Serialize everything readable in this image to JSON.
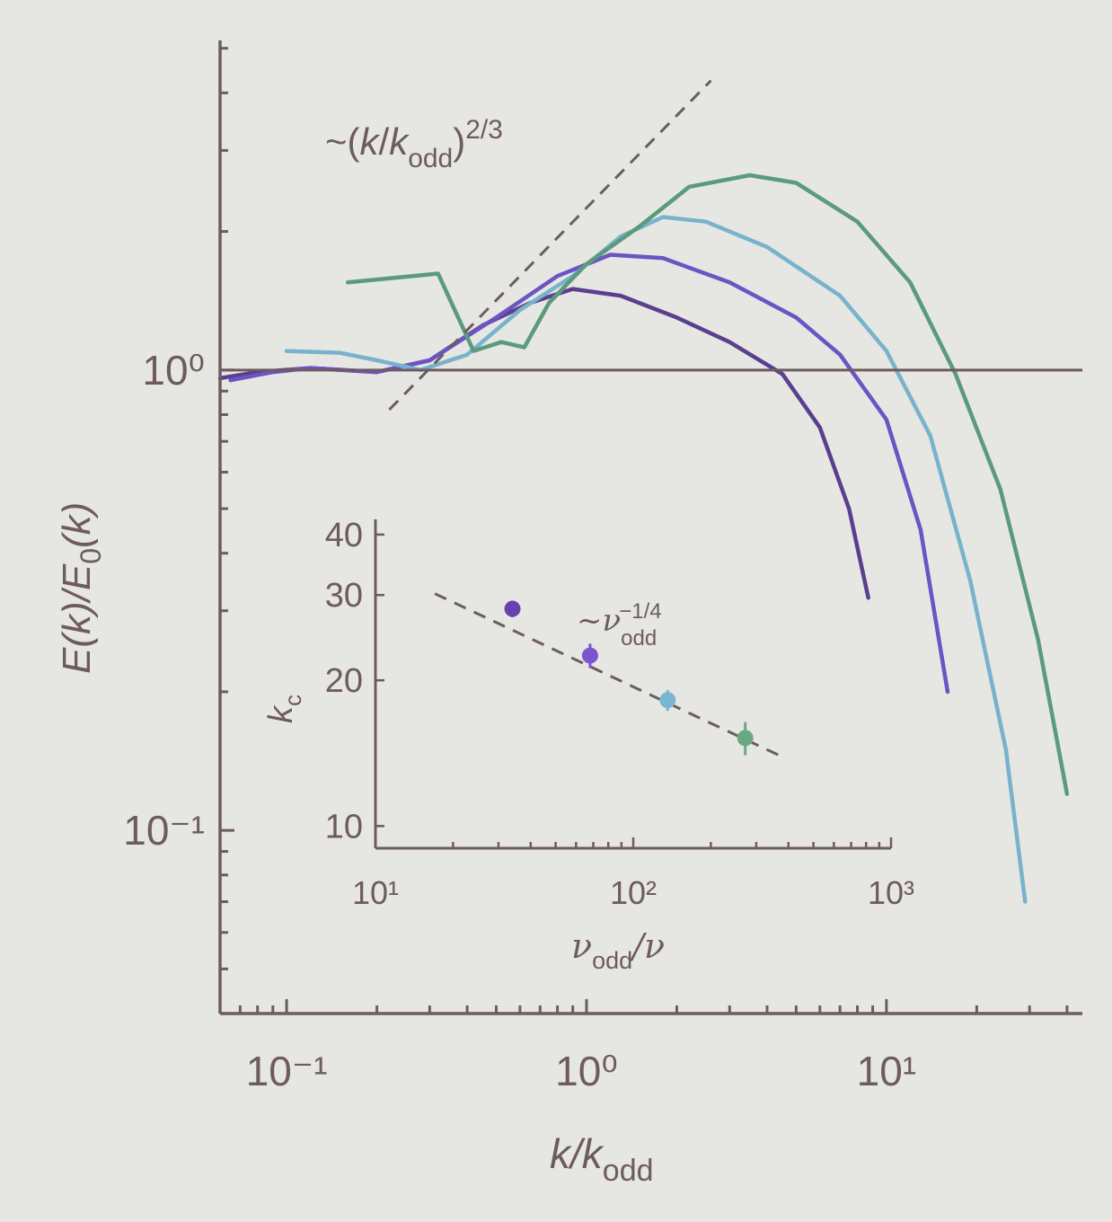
{
  "chart_data": [
    {
      "type": "line",
      "xscale": "log",
      "yscale": "log",
      "xlim": [
        0.06,
        45
      ],
      "ylim": [
        0.04,
        5.2
      ],
      "xlabel": "k/k_odd",
      "ylabel": "E(k)/E_0(k)",
      "xticks": [
        {
          "value": 0.1,
          "label": "10⁻¹"
        },
        {
          "value": 1,
          "label": "10⁰"
        },
        {
          "value": 10,
          "label": "10¹"
        }
      ],
      "yticks": [
        {
          "value": 0.1,
          "label": "10⁻¹"
        },
        {
          "value": 1,
          "label": "10⁰"
        }
      ],
      "reference_line": {
        "y": 1
      },
      "annotation": {
        "text": "~(k/k_odd)^2/3",
        "exponent": 0.6667,
        "x_range": [
          0.22,
          2.6
        ],
        "y_at_x0": 0.82
      },
      "grid": false,
      "series": [
        {
          "color": "#5b3f8f",
          "points": [
            [
              0.06,
              0.96
            ],
            [
              0.08,
              0.99
            ],
            [
              0.12,
              1.01
            ],
            [
              0.2,
              0.99
            ],
            [
              0.3,
              1.05
            ],
            [
              0.45,
              1.25
            ],
            [
              0.65,
              1.4
            ],
            [
              0.9,
              1.5
            ],
            [
              1.3,
              1.45
            ],
            [
              2,
              1.3
            ],
            [
              3,
              1.15
            ],
            [
              4.5,
              0.98
            ],
            [
              6,
              0.75
            ],
            [
              7.5,
              0.5
            ],
            [
              8.7,
              0.32
            ]
          ]
        },
        {
          "color": "#6b54c3",
          "points": [
            [
              0.065,
              0.95
            ],
            [
              0.09,
              0.99
            ],
            [
              0.12,
              1.01
            ],
            [
              0.2,
              0.99
            ],
            [
              0.3,
              1.05
            ],
            [
              0.5,
              1.3
            ],
            [
              0.8,
              1.6
            ],
            [
              1.2,
              1.78
            ],
            [
              1.8,
              1.75
            ],
            [
              3,
              1.55
            ],
            [
              5,
              1.3
            ],
            [
              7,
              1.08
            ],
            [
              10,
              0.78
            ],
            [
              13,
              0.45
            ],
            [
              16,
              0.2
            ]
          ]
        },
        {
          "color": "#78b2cc",
          "points": [
            [
              0.1,
              1.1
            ],
            [
              0.15,
              1.09
            ],
            [
              0.2,
              1.05
            ],
            [
              0.28,
              1.0
            ],
            [
              0.4,
              1.08
            ],
            [
              0.6,
              1.35
            ],
            [
              0.9,
              1.6
            ],
            [
              1.3,
              1.95
            ],
            [
              1.8,
              2.15
            ],
            [
              2.5,
              2.1
            ],
            [
              4,
              1.85
            ],
            [
              7,
              1.45
            ],
            [
              10,
              1.1
            ],
            [
              14,
              0.72
            ],
            [
              19,
              0.35
            ],
            [
              25,
              0.15
            ],
            [
              29,
              0.07
            ]
          ]
        },
        {
          "color": "#5c9a7c",
          "points": [
            [
              0.16,
              1.55
            ],
            [
              0.32,
              1.62
            ],
            [
              0.42,
              1.1
            ],
            [
              0.52,
              1.15
            ],
            [
              0.62,
              1.12
            ],
            [
              0.75,
              1.4
            ],
            [
              1.0,
              1.7
            ],
            [
              1.5,
              2.05
            ],
            [
              2.2,
              2.5
            ],
            [
              3.5,
              2.65
            ],
            [
              5,
              2.55
            ],
            [
              8,
              2.1
            ],
            [
              12,
              1.55
            ],
            [
              17,
              0.98
            ],
            [
              24,
              0.55
            ],
            [
              32,
              0.26
            ],
            [
              40,
              0.12
            ]
          ]
        }
      ]
    },
    {
      "type": "scatter",
      "inset": true,
      "xscale": "log",
      "yscale": "log",
      "xlim": [
        10,
        1000
      ],
      "ylim": [
        9,
        43
      ],
      "xlabel": "ν_odd/ν",
      "ylabel": "k_c",
      "xticks": [
        {
          "value": 10,
          "label": "10¹"
        },
        {
          "value": 100,
          "label": "10²"
        },
        {
          "value": 1000,
          "label": "10³"
        }
      ],
      "yticks": [
        {
          "value": 10,
          "label": "10"
        },
        {
          "value": 20,
          "label": "20"
        },
        {
          "value": 30,
          "label": "30"
        },
        {
          "value": 40,
          "label": "40"
        }
      ],
      "fit": {
        "text": "~ν_odd^-1/4",
        "exponent": -0.25,
        "x_range": [
          17,
          380
        ],
        "y_at_x0": 30.2
      },
      "points": [
        {
          "x": 34,
          "y": 28.1,
          "err": 1.1,
          "color": "#6a3fb2"
        },
        {
          "x": 68,
          "y": 22.5,
          "err": 1.3,
          "color": "#7a55d0"
        },
        {
          "x": 136,
          "y": 18.2,
          "err": 0.9,
          "color": "#78b6d3"
        },
        {
          "x": 272,
          "y": 15.2,
          "err": 1.2,
          "color": "#6aa884"
        }
      ]
    }
  ]
}
